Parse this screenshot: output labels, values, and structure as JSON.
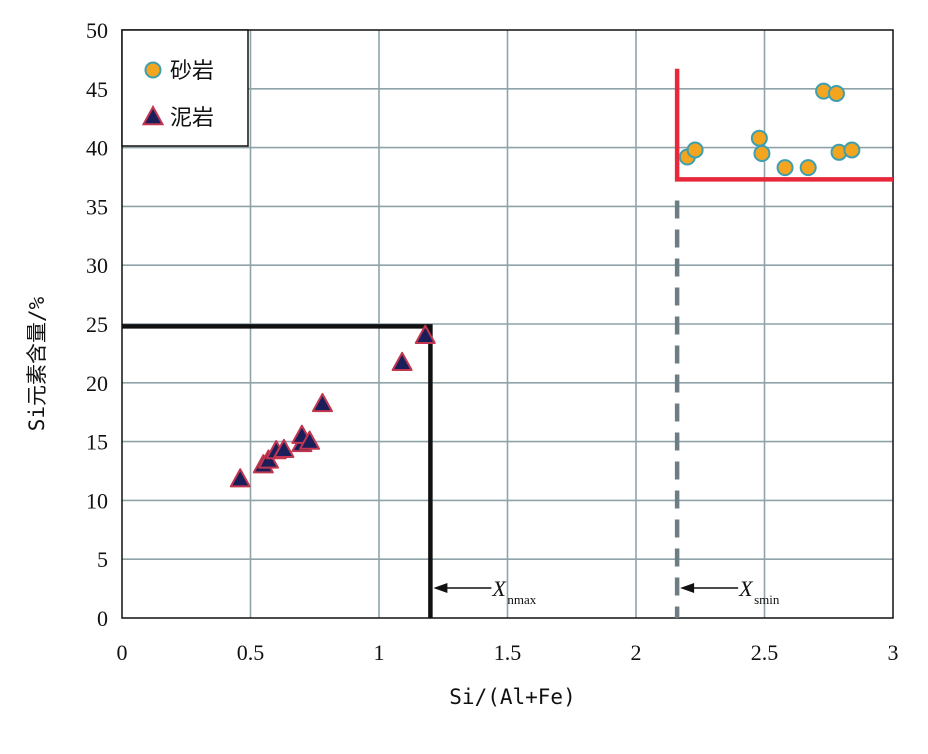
{
  "chart_data": {
    "type": "scatter",
    "xlabel": "Si/(Al+Fe)",
    "ylabel": "Si元素含量/%",
    "xlim": [
      0,
      3
    ],
    "ylim": [
      0,
      50
    ],
    "x_ticks": [
      "0",
      "0.5",
      "1",
      "1.5",
      "2",
      "2.5",
      "3"
    ],
    "y_ticks": [
      "0",
      "5",
      "10",
      "15",
      "20",
      "25",
      "30",
      "35",
      "40",
      "45",
      "50"
    ],
    "grid": true,
    "legend_position": "top-left",
    "series": [
      {
        "name": "砂岩",
        "marker": "circle",
        "color": "#f3a51f",
        "edge_color": "#3d9fb0",
        "points": [
          [
            2.2,
            39.2
          ],
          [
            2.23,
            39.8
          ],
          [
            2.48,
            40.8
          ],
          [
            2.49,
            39.5
          ],
          [
            2.58,
            38.3
          ],
          [
            2.67,
            38.3
          ],
          [
            2.73,
            44.8
          ],
          [
            2.78,
            44.6
          ],
          [
            2.79,
            39.6
          ],
          [
            2.84,
            39.8
          ]
        ]
      },
      {
        "name": "泥岩",
        "marker": "triangle",
        "color": "#1a1f5c",
        "edge_color": "#c2374f",
        "points": [
          [
            0.46,
            11.8
          ],
          [
            0.55,
            13.0
          ],
          [
            0.57,
            13.4
          ],
          [
            0.6,
            14.2
          ],
          [
            0.63,
            14.3
          ],
          [
            0.7,
            14.8
          ],
          [
            0.7,
            15.5
          ],
          [
            0.73,
            15.0
          ],
          [
            0.78,
            18.2
          ],
          [
            1.09,
            21.7
          ],
          [
            1.18,
            24.0
          ]
        ]
      }
    ],
    "annotations": [
      {
        "kind": "threshold-box",
        "color": "#111111",
        "x_max": 1.2,
        "y_max": 24.8,
        "label_main": "X",
        "label_sub": "nmax"
      },
      {
        "kind": "threshold-box",
        "color": "#e8283a",
        "x_min": 2.16,
        "y_min": 37.3,
        "top": 46.7,
        "right": 3.0,
        "dashed_x": 2.16,
        "dashed_from": 0,
        "dashed_to": 35.5,
        "dashed_color": "#6e7c84",
        "label_main": "X",
        "label_sub": "smin"
      }
    ]
  }
}
